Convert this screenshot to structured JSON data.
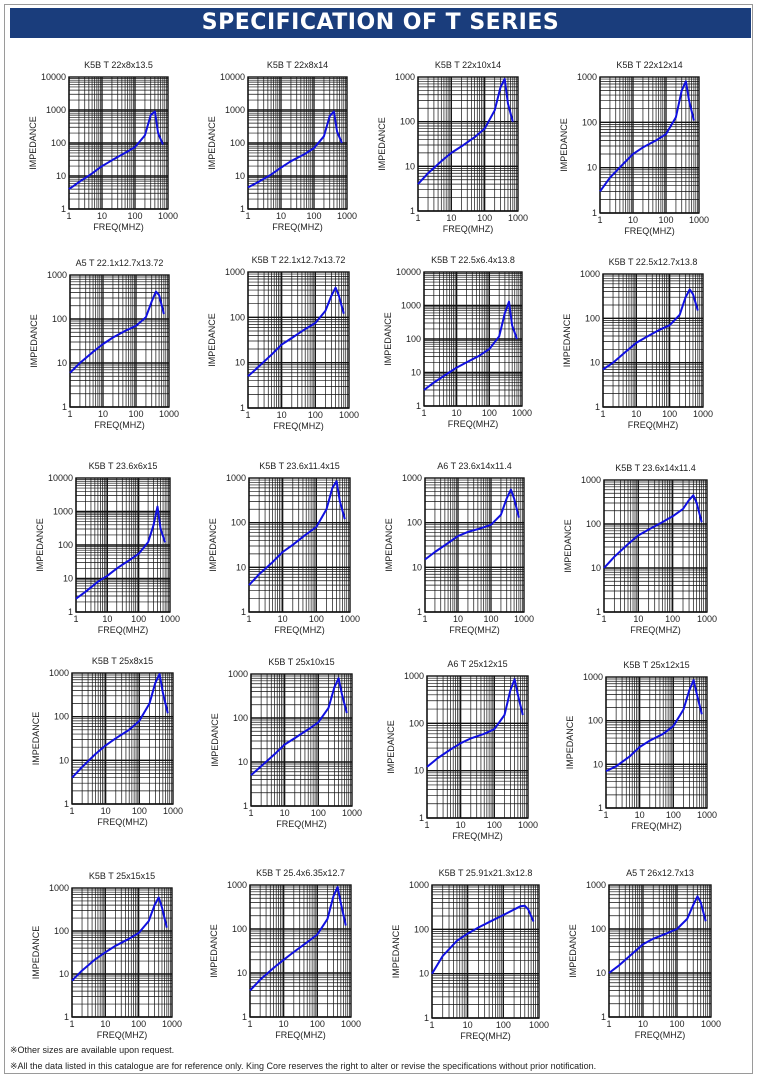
{
  "page": {
    "title": "SPECIFICATION OF T SERIES",
    "notes": [
      "※Other sizes are available upon request.",
      "※All the data listed in this catalogue are for reference only. King Core reserves the right to alter or revise the specifications without prior notification."
    ],
    "colors": {
      "banner": "#1a3d7c",
      "curve": "#1010e0",
      "grid": "#111111"
    }
  },
  "chart_data": [
    {
      "type": "line",
      "title": "K5B T 22x8x13.5",
      "xlabel": "FREQ(MHZ)",
      "ylabel": "IMPEDANCE",
      "x_scale": "log",
      "y_scale": "log",
      "xlim": [
        1,
        1000
      ],
      "ylim": [
        1,
        10000
      ],
      "x_ticks": [
        "1",
        "10",
        "100",
        "1000"
      ],
      "y_ticks": [
        "1",
        "10",
        "100",
        "1000",
        "10000"
      ],
      "grid": true,
      "series": [
        {
          "x": [
            1,
            2,
            5,
            10,
            20,
            50,
            100,
            200,
            300,
            400,
            500,
            700
          ],
          "y": [
            4,
            6.5,
            12,
            20,
            30,
            50,
            75,
            170,
            700,
            900,
            200,
            90
          ]
        }
      ]
    },
    {
      "type": "line",
      "title": "K5B T 22x8x14",
      "xlabel": "FREQ(MHZ)",
      "ylabel": "IMPEDANCE",
      "x_scale": "log",
      "y_scale": "log",
      "xlim": [
        1,
        1000
      ],
      "ylim": [
        1,
        10000
      ],
      "x_ticks": [
        "1",
        "10",
        "100",
        "1000"
      ],
      "y_ticks": [
        "1",
        "10",
        "100",
        "1000",
        "10000"
      ],
      "grid": true,
      "series": [
        {
          "x": [
            1,
            2,
            5,
            10,
            20,
            50,
            100,
            200,
            300,
            400,
            500,
            700
          ],
          "y": [
            4.5,
            6.5,
            11,
            18,
            28,
            45,
            70,
            160,
            650,
            900,
            220,
            100
          ]
        }
      ]
    },
    {
      "type": "line",
      "title": "K5B T 22x10x14",
      "xlabel": "FREQ(MHZ)",
      "ylabel": "IMPEDANCE",
      "x_scale": "log",
      "y_scale": "log",
      "xlim": [
        1,
        1000
      ],
      "ylim": [
        1,
        1000
      ],
      "x_ticks": [
        "1",
        "10",
        "100",
        "1000"
      ],
      "y_ticks": [
        "1",
        "10",
        "100",
        "1000"
      ],
      "grid": true,
      "series": [
        {
          "x": [
            1,
            2,
            5,
            10,
            20,
            50,
            100,
            200,
            300,
            400,
            500,
            700
          ],
          "y": [
            4,
            7,
            13,
            20,
            28,
            45,
            70,
            180,
            600,
            900,
            250,
            100
          ]
        }
      ]
    },
    {
      "type": "line",
      "title": "K5B T 22x12x14",
      "xlabel": "FREQ(MHZ)",
      "ylabel": "IMPEDANCE",
      "x_scale": "log",
      "y_scale": "log",
      "xlim": [
        1,
        1000
      ],
      "ylim": [
        1,
        1000
      ],
      "x_ticks": [
        "1",
        "10",
        "100",
        "1000"
      ],
      "y_ticks": [
        "1",
        "10",
        "100",
        "1000"
      ],
      "grid": true,
      "series": [
        {
          "x": [
            1,
            2,
            5,
            10,
            20,
            50,
            100,
            200,
            300,
            400,
            500,
            700
          ],
          "y": [
            3,
            6,
            12,
            20,
            28,
            40,
            55,
            130,
            500,
            800,
            300,
            110
          ]
        }
      ]
    },
    {
      "type": "line",
      "title": "A5 T 22.1x12.7x13.72",
      "xlabel": "FREQ(MHZ)",
      "ylabel": "IMPEDANCE",
      "x_scale": "log",
      "y_scale": "log",
      "xlim": [
        1,
        1000
      ],
      "ylim": [
        1,
        1000
      ],
      "x_ticks": [
        "1",
        "10",
        "100",
        "1000"
      ],
      "y_ticks": [
        "1",
        "10",
        "100",
        "1000"
      ],
      "grid": true,
      "series": [
        {
          "x": [
            1,
            2,
            5,
            10,
            20,
            50,
            100,
            200,
            300,
            400,
            500,
            700
          ],
          "y": [
            6,
            10,
            18,
            27,
            38,
            55,
            70,
            110,
            250,
            420,
            350,
            130
          ]
        }
      ]
    },
    {
      "type": "line",
      "title": "K5B T 22.1x12.7x13.72",
      "xlabel": "FREQ(MHZ)",
      "ylabel": "IMPEDANCE",
      "x_scale": "log",
      "y_scale": "log",
      "xlim": [
        1,
        1000
      ],
      "ylim": [
        1,
        1000
      ],
      "x_ticks": [
        "1",
        "10",
        "100",
        "1000"
      ],
      "y_ticks": [
        "1",
        "10",
        "100",
        "1000"
      ],
      "grid": true,
      "series": [
        {
          "x": [
            1,
            2,
            5,
            10,
            20,
            50,
            100,
            200,
            300,
            400,
            500,
            700
          ],
          "y": [
            5,
            8,
            15,
            25,
            35,
            55,
            75,
            140,
            300,
            450,
            300,
            120
          ]
        }
      ]
    },
    {
      "type": "line",
      "title": "K5B T 22.5x6.4x13.8",
      "xlabel": "FREQ(MHZ)",
      "ylabel": "IMPEDANCE",
      "x_scale": "log",
      "y_scale": "log",
      "xlim": [
        1,
        1000
      ],
      "ylim": [
        1,
        10000
      ],
      "x_ticks": [
        "1",
        "10",
        "100",
        "1000"
      ],
      "y_ticks": [
        "1",
        "10",
        "100",
        "1000",
        "10000"
      ],
      "grid": true,
      "series": [
        {
          "x": [
            1,
            2,
            5,
            10,
            20,
            50,
            100,
            200,
            300,
            400,
            500,
            700
          ],
          "y": [
            3,
            5,
            9,
            14,
            20,
            32,
            50,
            120,
            600,
            1300,
            250,
            100
          ]
        }
      ]
    },
    {
      "type": "line",
      "title": "K5B T 22.5x12.7x13.8",
      "xlabel": "FREQ(MHZ)",
      "ylabel": "IMPEDANCE",
      "x_scale": "log",
      "y_scale": "log",
      "xlim": [
        1,
        1000
      ],
      "ylim": [
        1,
        1000
      ],
      "x_ticks": [
        "1",
        "10",
        "100",
        "1000"
      ],
      "y_ticks": [
        "1",
        "10",
        "100",
        "1000"
      ],
      "grid": true,
      "series": [
        {
          "x": [
            1,
            2,
            5,
            10,
            20,
            50,
            100,
            200,
            300,
            400,
            500,
            700
          ],
          "y": [
            7,
            10,
            18,
            28,
            38,
            55,
            70,
            120,
            300,
            450,
            350,
            150
          ]
        }
      ]
    },
    {
      "type": "line",
      "title": "K5B T 23.6x6x15",
      "xlabel": "FREQ(MHZ)",
      "ylabel": "IMPEDANCE",
      "x_scale": "log",
      "y_scale": "log",
      "xlim": [
        1,
        1000
      ],
      "ylim": [
        1,
        10000
      ],
      "x_ticks": [
        "1",
        "10",
        "100",
        "1000"
      ],
      "y_ticks": [
        "1",
        "10",
        "100",
        "1000",
        "10000"
      ],
      "grid": true,
      "series": [
        {
          "x": [
            1,
            2,
            5,
            10,
            20,
            50,
            100,
            200,
            300,
            400,
            500,
            700
          ],
          "y": [
            2.5,
            4,
            8,
            12,
            20,
            35,
            55,
            120,
            400,
            1400,
            300,
            120
          ]
        }
      ]
    },
    {
      "type": "line",
      "title": "K5B T 23.6x11.4x15",
      "xlabel": "FREQ(MHZ)",
      "ylabel": "IMPEDANCE",
      "x_scale": "log",
      "y_scale": "log",
      "xlim": [
        1,
        1000
      ],
      "ylim": [
        1,
        1000
      ],
      "x_ticks": [
        "1",
        "10",
        "100",
        "1000"
      ],
      "y_ticks": [
        "1",
        "10",
        "100",
        "1000"
      ],
      "grid": true,
      "series": [
        {
          "x": [
            1,
            2,
            5,
            10,
            20,
            50,
            100,
            200,
            300,
            400,
            500,
            700
          ],
          "y": [
            4,
            7,
            13,
            22,
            32,
            55,
            80,
            200,
            600,
            850,
            300,
            120
          ]
        }
      ]
    },
    {
      "type": "line",
      "title": "A6 T 23.6x14x11.4",
      "xlabel": "FREQ(MHZ)",
      "ylabel": "IMPEDANCE",
      "x_scale": "log",
      "y_scale": "log",
      "xlim": [
        1,
        1000
      ],
      "ylim": [
        1,
        1000
      ],
      "x_ticks": [
        "1",
        "10",
        "100",
        "1000"
      ],
      "y_ticks": [
        "1",
        "10",
        "100",
        "1000"
      ],
      "grid": true,
      "series": [
        {
          "x": [
            1,
            2,
            5,
            10,
            20,
            50,
            100,
            200,
            300,
            400,
            500,
            700
          ],
          "y": [
            15,
            22,
            35,
            50,
            62,
            75,
            90,
            150,
            350,
            550,
            350,
            130
          ]
        }
      ]
    },
    {
      "type": "line",
      "title": "K5B T 23.6x14x11.4",
      "xlabel": "FREQ(MHZ)",
      "ylabel": "IMPEDANCE",
      "x_scale": "log",
      "y_scale": "log",
      "xlim": [
        1,
        1000
      ],
      "ylim": [
        1,
        1000
      ],
      "x_ticks": [
        "1",
        "10",
        "100",
        "1000"
      ],
      "y_ticks": [
        "1",
        "10",
        "100",
        "1000"
      ],
      "grid": true,
      "series": [
        {
          "x": [
            1,
            2,
            5,
            10,
            20,
            50,
            100,
            200,
            300,
            400,
            500,
            700
          ],
          "y": [
            10,
            18,
            35,
            55,
            75,
            110,
            150,
            220,
            350,
            450,
            300,
            110
          ]
        }
      ]
    },
    {
      "type": "line",
      "title": "K5B T 25x8x15",
      "xlabel": "FREQ(MHZ)",
      "ylabel": "IMPEDANCE",
      "x_scale": "log",
      "y_scale": "log",
      "xlim": [
        1,
        1000
      ],
      "ylim": [
        1,
        1000
      ],
      "x_ticks": [
        "1",
        "10",
        "100",
        "1000"
      ],
      "y_ticks": [
        "1",
        "10",
        "100",
        "1000"
      ],
      "grid": true,
      "series": [
        {
          "x": [
            1,
            2,
            5,
            10,
            20,
            50,
            100,
            200,
            300,
            400,
            500,
            700
          ],
          "y": [
            4,
            7,
            14,
            22,
            32,
            50,
            80,
            200,
            600,
            950,
            350,
            120
          ]
        }
      ]
    },
    {
      "type": "line",
      "title": "K5B T 25x10x15",
      "xlabel": "FREQ(MHZ)",
      "ylabel": "IMPEDANCE",
      "x_scale": "log",
      "y_scale": "log",
      "xlim": [
        1,
        1000
      ],
      "ylim": [
        1,
        1000
      ],
      "x_ticks": [
        "1",
        "10",
        "100",
        "1000"
      ],
      "y_ticks": [
        "1",
        "10",
        "100",
        "1000"
      ],
      "grid": true,
      "series": [
        {
          "x": [
            1,
            2,
            5,
            10,
            20,
            50,
            100,
            200,
            300,
            400,
            500,
            700
          ],
          "y": [
            5,
            8,
            15,
            25,
            35,
            55,
            80,
            170,
            500,
            800,
            350,
            130
          ]
        }
      ]
    },
    {
      "type": "line",
      "title": "A6 T 25x12x15",
      "xlabel": "FREQ(MHZ)",
      "ylabel": "IMPEDANCE",
      "x_scale": "log",
      "y_scale": "log",
      "xlim": [
        1,
        1000
      ],
      "ylim": [
        1,
        1000
      ],
      "x_ticks": [
        "1",
        "10",
        "100",
        "1000"
      ],
      "y_ticks": [
        "1",
        "10",
        "100",
        "1000"
      ],
      "grid": true,
      "series": [
        {
          "x": [
            1,
            2,
            5,
            10,
            20,
            50,
            100,
            200,
            300,
            400,
            500,
            700
          ],
          "y": [
            12,
            18,
            28,
            38,
            48,
            60,
            75,
            150,
            500,
            850,
            400,
            150
          ]
        }
      ]
    },
    {
      "type": "line",
      "title": "K5B T 25x12x15",
      "xlabel": "FREQ(MHZ)",
      "ylabel": "IMPEDANCE",
      "x_scale": "log",
      "y_scale": "log",
      "xlim": [
        1,
        1000
      ],
      "ylim": [
        1,
        1000
      ],
      "x_ticks": [
        "1",
        "10",
        "100",
        "1000"
      ],
      "y_ticks": [
        "1",
        "10",
        "100",
        "1000"
      ],
      "grid": true,
      "series": [
        {
          "x": [
            1,
            2,
            5,
            10,
            20,
            50,
            100,
            200,
            300,
            400,
            500,
            700
          ],
          "y": [
            7,
            9,
            15,
            25,
            35,
            50,
            75,
            180,
            500,
            850,
            400,
            140
          ]
        }
      ]
    },
    {
      "type": "line",
      "title": "K5B T 25x15x15",
      "xlabel": "FREQ(MHZ)",
      "ylabel": "IMPEDANCE",
      "x_scale": "log",
      "y_scale": "log",
      "xlim": [
        1,
        1000
      ],
      "ylim": [
        1,
        1000
      ],
      "x_ticks": [
        "1",
        "10",
        "100",
        "1000"
      ],
      "y_ticks": [
        "1",
        "10",
        "100",
        "1000"
      ],
      "grid": true,
      "series": [
        {
          "x": [
            1,
            2,
            5,
            10,
            20,
            50,
            100,
            200,
            300,
            400,
            500,
            700
          ],
          "y": [
            7,
            12,
            22,
            32,
            45,
            65,
            90,
            170,
            400,
            600,
            350,
            120
          ]
        }
      ]
    },
    {
      "type": "line",
      "title": "K5B T 25.4x6.35x12.7",
      "xlabel": "FREQ(MHZ)",
      "ylabel": "IMPEDANCE",
      "x_scale": "log",
      "y_scale": "log",
      "xlim": [
        1,
        1000
      ],
      "ylim": [
        1,
        1000
      ],
      "x_ticks": [
        "1",
        "10",
        "100",
        "1000"
      ],
      "y_ticks": [
        "1",
        "10",
        "100",
        "1000"
      ],
      "grid": true,
      "series": [
        {
          "x": [
            1,
            2,
            5,
            10,
            20,
            50,
            100,
            200,
            300,
            400,
            500,
            700
          ],
          "y": [
            4,
            7,
            13,
            20,
            30,
            50,
            75,
            170,
            550,
            900,
            380,
            120
          ]
        }
      ]
    },
    {
      "type": "line",
      "title": "K5B T 25.91x21.3x12.8",
      "xlabel": "FREQ(MHZ)",
      "ylabel": "IMPEDANCE",
      "x_scale": "log",
      "y_scale": "log",
      "xlim": [
        1,
        1000
      ],
      "ylim": [
        1,
        1000
      ],
      "x_ticks": [
        "1",
        "10",
        "100",
        "1000"
      ],
      "y_ticks": [
        "1",
        "10",
        "100",
        "1000"
      ],
      "grid": true,
      "series": [
        {
          "x": [
            1,
            2,
            5,
            10,
            20,
            50,
            100,
            200,
            300,
            400,
            500,
            700
          ],
          "y": [
            10,
            25,
            55,
            80,
            110,
            160,
            210,
            280,
            330,
            340,
            280,
            150
          ]
        }
      ]
    },
    {
      "type": "line",
      "title": "A5 T 26x12.7x13",
      "xlabel": "FREQ(MHZ)",
      "ylabel": "IMPEDANCE",
      "x_scale": "log",
      "y_scale": "log",
      "xlim": [
        1,
        1000
      ],
      "ylim": [
        1,
        1000
      ],
      "x_ticks": [
        "1",
        "10",
        "100",
        "1000"
      ],
      "y_ticks": [
        "1",
        "10",
        "100",
        "1000"
      ],
      "grid": true,
      "series": [
        {
          "x": [
            1,
            2,
            5,
            10,
            20,
            50,
            100,
            200,
            300,
            400,
            500,
            700
          ],
          "y": [
            10,
            15,
            28,
            45,
            60,
            80,
            100,
            170,
            350,
            550,
            400,
            150
          ]
        }
      ]
    }
  ]
}
